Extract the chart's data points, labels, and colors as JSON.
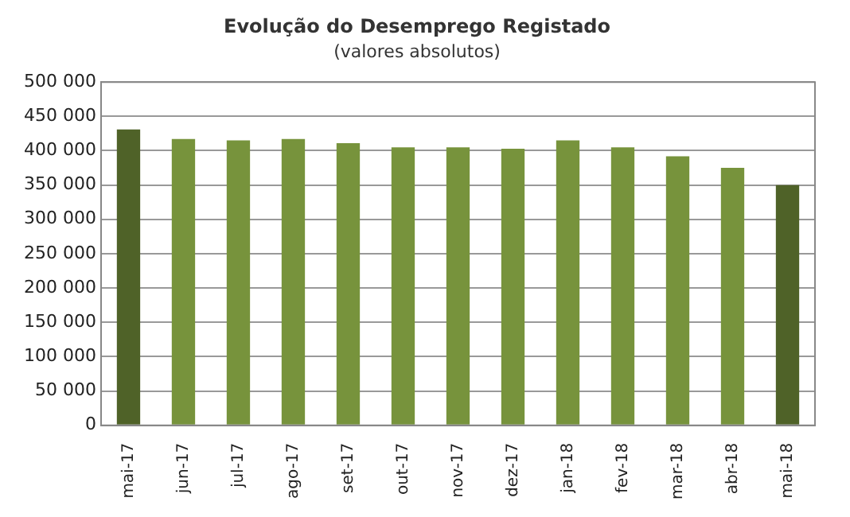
{
  "chart_data": {
    "type": "bar",
    "title": "Evolução do Desemprego Registado",
    "subtitle": "(valores absolutos)",
    "categories": [
      "mai-17",
      "jun-17",
      "jul-17",
      "ago-17",
      "set-17",
      "out-17",
      "nov-17",
      "dez-17",
      "jan-18",
      "fev-18",
      "mar-18",
      "abr-18",
      "mai-18"
    ],
    "values": [
      431000,
      417000,
      415000,
      417000,
      411000,
      405000,
      405000,
      403000,
      415000,
      405000,
      392000,
      375000,
      350000
    ],
    "colors": [
      "#4f6228",
      "#77933c",
      "#77933c",
      "#77933c",
      "#77933c",
      "#77933c",
      "#77933c",
      "#77933c",
      "#77933c",
      "#77933c",
      "#77933c",
      "#77933c",
      "#4f6228"
    ],
    "ylim": [
      0,
      500000
    ],
    "yticks": [
      {
        "value": 0,
        "label": "0"
      },
      {
        "value": 50000,
        "label": "50 000"
      },
      {
        "value": 100000,
        "label": "100 000"
      },
      {
        "value": 150000,
        "label": "150 000"
      },
      {
        "value": 200000,
        "label": "200 000"
      },
      {
        "value": 250000,
        "label": "250 000"
      },
      {
        "value": 300000,
        "label": "300 000"
      },
      {
        "value": 350000,
        "label": "350 000"
      },
      {
        "value": 400000,
        "label": "400 000"
      },
      {
        "value": 450000,
        "label": "450 000"
      },
      {
        "value": 500000,
        "label": "500 000"
      }
    ],
    "grid": "y"
  }
}
